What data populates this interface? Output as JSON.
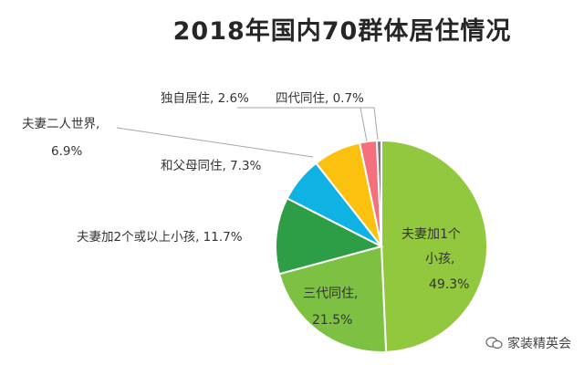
{
  "chart_data": {
    "type": "pie",
    "title": "2018年国内70群体居住情况",
    "slices": [
      {
        "name": "夫妻加1个小孩",
        "value": 49.3,
        "value_label": "49.3%",
        "color": "#92c83e"
      },
      {
        "name": "三代同住",
        "value": 21.5,
        "value_label": "21.5%",
        "color": "#7cc142"
      },
      {
        "name": "夫妻加2个或以上小孩",
        "value": 11.7,
        "value_label": "11.7%",
        "color": "#2e9e46"
      },
      {
        "name": "夫妻二人世界",
        "value": 6.9,
        "value_label": "6.9%",
        "color": "#0eb3e4"
      },
      {
        "name": "和父母同住",
        "value": 7.3,
        "value_label": "7.3%",
        "color": "#fcc10f"
      },
      {
        "name": "独自居住",
        "value": 2.6,
        "value_label": "2.6%",
        "color": "#f4707d"
      },
      {
        "name": "四代同住",
        "value": 0.7,
        "value_label": "0.7%",
        "color": "#7b7b7b"
      }
    ],
    "labels": {
      "single_child_line1": "夫妻加1个",
      "single_child_line2": "小孩,",
      "single_child_value": "49.3%",
      "three_gen": "三代同住,",
      "three_gen_value": "21.5%",
      "multi_child": "夫妻加2个或以上小孩, 11.7%",
      "couple": "夫妻二人世界,",
      "couple_value": "6.9%",
      "with_parents": "和父母同住, 7.3%",
      "alone": "独自居住, 2.6%",
      "four_gen": "四代同住, 0.7%"
    }
  },
  "watermark": {
    "text": "家装精英会",
    "icon": "wechat-icon"
  }
}
